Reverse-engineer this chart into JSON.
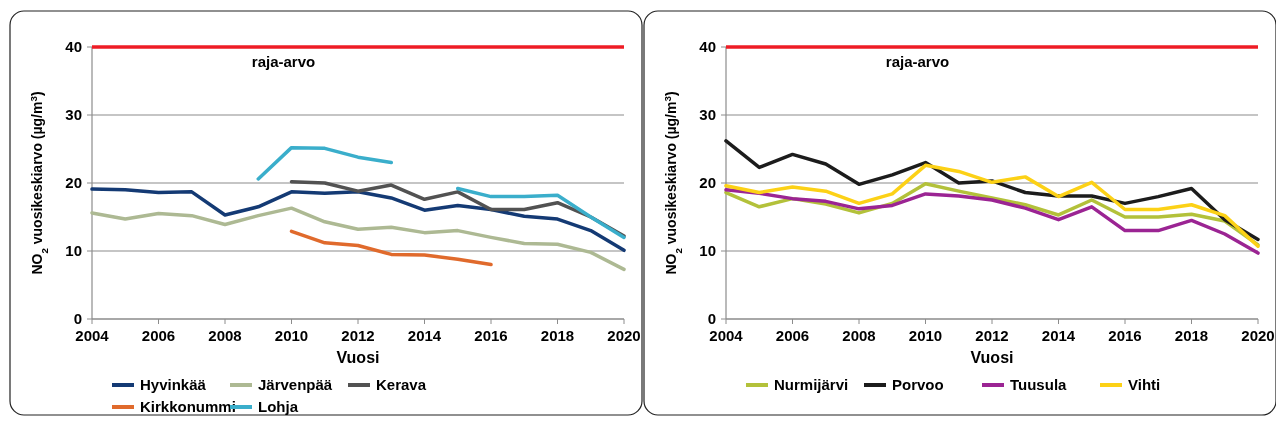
{
  "chart_data": [
    {
      "type": "line",
      "xlabel": "Vuosi",
      "ylabel": "NO$_{2}$ vuosikeskiarvo (µg/m$^{3}$)",
      "x": [
        2004,
        2005,
        2006,
        2007,
        2008,
        2009,
        2010,
        2011,
        2012,
        2013,
        2014,
        2015,
        2016,
        2017,
        2018,
        2019,
        2020
      ],
      "xlim": [
        2004,
        2020
      ],
      "xticks": [
        2004,
        2006,
        2008,
        2010,
        2012,
        2014,
        2016,
        2018,
        2020
      ],
      "ylim": [
        0,
        40
      ],
      "yticks": [
        0,
        10,
        20,
        30,
        40
      ],
      "grid": "y",
      "legend": "bottom",
      "marker": "none",
      "line_style": "solid",
      "ref_lines": [
        {
          "axis": "y",
          "value": 40,
          "label": "raja-arvo",
          "color": "#ee1c25"
        }
      ],
      "series": [
        {
          "name": "Hyvinkää",
          "color": "#143a74",
          "values": [
            19.1,
            19.0,
            18.6,
            18.7,
            15.3,
            16.5,
            18.7,
            18.5,
            18.7,
            17.8,
            16.0,
            16.7,
            16.1,
            15.1,
            14.7,
            13.0,
            10.1
          ]
        },
        {
          "name": "Järvenpää",
          "color": "#adb993",
          "values": [
            15.6,
            14.7,
            15.5,
            15.2,
            13.9,
            15.2,
            16.3,
            14.3,
            13.2,
            13.5,
            12.7,
            13.0,
            12.0,
            11.1,
            11.0,
            9.8,
            7.3
          ]
        },
        {
          "name": "Kerava",
          "color": "#525252",
          "values": [
            null,
            null,
            null,
            null,
            null,
            null,
            20.2,
            20.0,
            18.8,
            19.7,
            17.6,
            18.7,
            16.1,
            16.1,
            17.1,
            15.0,
            12.2
          ]
        },
        {
          "name": "Kirkkonummi",
          "color": "#e06a2c",
          "values": [
            null,
            null,
            null,
            null,
            null,
            null,
            12.9,
            11.2,
            10.8,
            9.5,
            9.4,
            8.8,
            8.0,
            null,
            null,
            null,
            null
          ]
        },
        {
          "name": "Lohja",
          "color": "#3aaecb",
          "values": [
            null,
            null,
            null,
            null,
            null,
            20.6,
            25.2,
            25.1,
            23.8,
            23.0,
            null,
            19.2,
            18.0,
            18.0,
            18.2,
            15.0,
            12.0
          ]
        }
      ]
    },
    {
      "type": "line",
      "xlabel": "Vuosi",
      "ylabel": "NO$_{2}$ vuosikeskiarvo (µg/m$^{3}$)",
      "x": [
        2004,
        2005,
        2006,
        2007,
        2008,
        2009,
        2010,
        2011,
        2012,
        2013,
        2014,
        2015,
        2016,
        2017,
        2018,
        2019,
        2020
      ],
      "xlim": [
        2004,
        2020
      ],
      "xticks": [
        2004,
        2006,
        2008,
        2010,
        2012,
        2014,
        2016,
        2018,
        2020
      ],
      "ylim": [
        0,
        40
      ],
      "yticks": [
        0,
        10,
        20,
        30,
        40
      ],
      "grid": "y",
      "legend": "bottom",
      "marker": "none",
      "line_style": "solid",
      "ref_lines": [
        {
          "axis": "y",
          "value": 40,
          "label": "raja-arvo",
          "color": "#ee1c25"
        }
      ],
      "series": [
        {
          "name": "Nurmijärvi",
          "color": "#b3c13a",
          "values": [
            18.6,
            16.5,
            17.7,
            16.9,
            15.6,
            17.0,
            19.9,
            18.8,
            17.8,
            16.8,
            15.3,
            17.5,
            15.0,
            15.0,
            15.4,
            14.4,
            10.9
          ]
        },
        {
          "name": "Porvoo",
          "color": "#1c1c1c",
          "values": [
            26.2,
            22.3,
            24.2,
            22.8,
            19.8,
            21.2,
            23.0,
            20.0,
            20.3,
            18.6,
            18.1,
            18.1,
            17.0,
            18.0,
            19.2,
            14.6,
            11.7
          ]
        },
        {
          "name": "Tuusula",
          "color": "#9b2493",
          "values": [
            19.0,
            18.5,
            17.7,
            17.3,
            16.2,
            16.7,
            18.4,
            18.1,
            17.5,
            16.3,
            14.6,
            16.5,
            13.0,
            13.0,
            14.5,
            12.5,
            9.7
          ]
        },
        {
          "name": "Vihti",
          "color": "#fcd116",
          "values": [
            19.6,
            18.6,
            19.4,
            18.8,
            17.0,
            18.4,
            22.6,
            21.7,
            20.1,
            20.9,
            18.0,
            20.1,
            16.1,
            16.1,
            16.8,
            15.2,
            10.7
          ]
        }
      ]
    }
  ]
}
